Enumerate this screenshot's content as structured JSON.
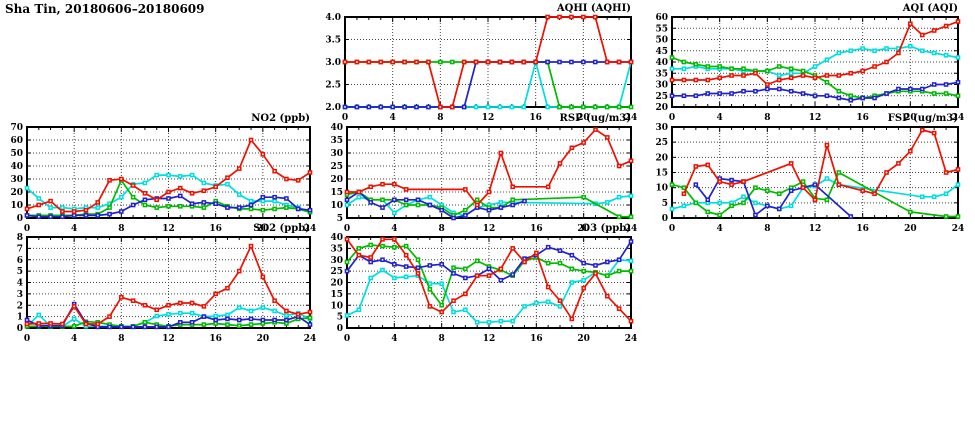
{
  "page_title": "Sha Tin, 20180606–20180609",
  "palette": {
    "red": "#ee1100",
    "green": "#00bb00",
    "blue": "#2222cc",
    "cyan": "#00dfdf"
  },
  "chart_data": [
    {
      "id": "aqhi",
      "type": "line",
      "title": "AQHI (AQHI)",
      "x_ticks": [
        0,
        4,
        8,
        12,
        16,
        20,
        24
      ],
      "x_range": [
        0,
        24
      ],
      "y_range": [
        2.0,
        4.0
      ],
      "y_tick_labels": [
        "2.0",
        "2.5",
        "3.0",
        "3.5",
        "4.0"
      ],
      "y_ticks": [
        2.0,
        2.5,
        3.0,
        3.5,
        4.0
      ],
      "grid": true,
      "legend": "none",
      "series": [
        {
          "name": "series-cyan",
          "color": "cyan",
          "values": [
            2,
            2,
            2,
            2,
            2,
            2,
            2,
            2,
            2,
            2,
            2,
            2,
            2,
            2,
            2,
            2,
            3,
            2,
            2,
            2,
            2,
            2,
            2,
            2,
            3
          ]
        },
        {
          "name": "series-green",
          "color": "green",
          "values": [
            3,
            3,
            3,
            3,
            3,
            3,
            3,
            3,
            3,
            3,
            3,
            3,
            3,
            3,
            3,
            3,
            3,
            3,
            2,
            2,
            2,
            2,
            2,
            2,
            2
          ]
        },
        {
          "name": "series-blue",
          "color": "blue",
          "values": [
            2,
            2,
            2,
            2,
            2,
            2,
            2,
            2,
            2,
            2,
            2,
            3,
            3,
            3,
            3,
            3,
            3,
            3,
            3,
            3,
            3,
            3,
            3,
            3,
            3
          ]
        },
        {
          "name": "series-red",
          "color": "red",
          "values": [
            3,
            3,
            3,
            3,
            3,
            3,
            3,
            3,
            2,
            2,
            3,
            3,
            3,
            3,
            3,
            3,
            3,
            4,
            4,
            4,
            4,
            4,
            3,
            3,
            3
          ]
        }
      ]
    },
    {
      "id": "aqi",
      "type": "line",
      "title": "AQI (AQI)",
      "x_ticks": [
        0,
        4,
        8,
        12,
        16,
        20,
        24
      ],
      "x_range": [
        0,
        24
      ],
      "y_range": [
        20,
        60
      ],
      "y_tick_labels": [
        "20",
        "25",
        "30",
        "35",
        "40",
        "45",
        "50",
        "55",
        "60"
      ],
      "y_ticks": [
        20,
        25,
        30,
        35,
        40,
        45,
        50,
        55,
        60
      ],
      "grid": true,
      "legend": "none",
      "series": [
        {
          "name": "series-cyan",
          "color": "cyan",
          "values": [
            37,
            37,
            38,
            37,
            37,
            37,
            36,
            36,
            36,
            34,
            35,
            35,
            38,
            41,
            44,
            45,
            46,
            45,
            46,
            46,
            47,
            45,
            44,
            43,
            42
          ]
        },
        {
          "name": "series-green",
          "color": "green",
          "values": [
            42,
            40,
            39,
            38,
            38,
            37,
            37,
            36,
            36,
            38,
            37,
            36,
            34,
            31,
            27,
            25,
            24,
            25,
            26,
            27,
            27,
            27,
            26,
            26,
            25
          ]
        },
        {
          "name": "series-blue",
          "color": "blue",
          "values": [
            25,
            25,
            25,
            26,
            26,
            26,
            27,
            27,
            28,
            28,
            27,
            26,
            25,
            25,
            24,
            23,
            24,
            24,
            26,
            28,
            28,
            28,
            30,
            30,
            31
          ]
        },
        {
          "name": "series-red",
          "color": "red",
          "values": [
            32,
            32,
            32,
            32,
            33,
            34,
            34,
            35,
            30,
            32,
            33,
            34,
            33,
            34,
            34,
            35,
            36,
            38,
            40,
            44,
            57,
            52,
            54,
            56,
            58
          ]
        }
      ]
    },
    {
      "id": "no2",
      "type": "line",
      "title": "NO2 (ppb)",
      "x_ticks": [
        0,
        4,
        8,
        12,
        16,
        20,
        24
      ],
      "x_range": [
        0,
        24
      ],
      "y_range": [
        0,
        70
      ],
      "y_tick_labels": [
        "0",
        "10",
        "20",
        "30",
        "40",
        "50",
        "60",
        "70"
      ],
      "y_ticks": [
        0,
        10,
        20,
        30,
        40,
        50,
        60,
        70
      ],
      "grid": true,
      "legend": "none",
      "series": [
        {
          "name": "series-cyan",
          "color": "cyan",
          "values": [
            23,
            15,
            8,
            8,
            7,
            8,
            8,
            11,
            16,
            26,
            27,
            33,
            33,
            32,
            33,
            27,
            25,
            26,
            18,
            13,
            13,
            13,
            10,
            8,
            5
          ]
        },
        {
          "name": "series-green",
          "color": "green",
          "values": [
            2,
            2,
            2,
            2,
            2,
            3,
            3,
            8,
            29,
            16,
            10,
            8,
            9,
            9,
            9,
            8,
            13,
            9,
            7,
            7,
            6,
            7,
            8,
            7,
            4.5
          ]
        },
        {
          "name": "series-blue",
          "color": "blue",
          "values": [
            2,
            1,
            1,
            1,
            2,
            2,
            2,
            3,
            5,
            10,
            14,
            15,
            15,
            17,
            11,
            12,
            11,
            8,
            8,
            10,
            16,
            16,
            15,
            7,
            6
          ]
        },
        {
          "name": "series-red",
          "color": "red",
          "values": [
            7,
            10,
            13,
            5,
            5,
            6,
            12,
            29,
            30,
            25,
            19,
            14,
            20,
            23,
            19,
            21,
            24,
            31,
            38,
            60,
            49,
            36,
            30,
            29,
            35
          ]
        }
      ]
    },
    {
      "id": "rsp",
      "type": "line",
      "title": "RSP (ug/m3)",
      "x_ticks": [
        0,
        4,
        8,
        12,
        16,
        20,
        24
      ],
      "x_range": [
        0,
        24
      ],
      "y_range": [
        5,
        40
      ],
      "y_tick_labels": [
        "5",
        "10",
        "15",
        "20",
        "25",
        "30",
        "35",
        "40"
      ],
      "y_ticks": [
        5,
        10,
        15,
        20,
        25,
        30,
        35,
        40
      ],
      "grid": true,
      "legend": "none",
      "series": [
        {
          "name": "series-cyan",
          "color": "cyan",
          "values": [
            10,
            13,
            12,
            12,
            7,
            10,
            12,
            13,
            10,
            7,
            6,
            9,
            10,
            11,
            11,
            null,
            null,
            null,
            null,
            null,
            null,
            10.5,
            11,
            13,
            13.5
          ]
        },
        {
          "name": "series-green",
          "color": "green",
          "values": [
            14,
            15,
            12,
            12,
            12,
            10,
            10,
            10,
            9,
            6,
            8,
            12,
            9,
            9,
            12,
            null,
            null,
            null,
            null,
            null,
            13,
            null,
            null,
            5.5,
            5.5
          ]
        },
        {
          "name": "series-blue",
          "color": "blue",
          "values": [
            12,
            15,
            11,
            9,
            12,
            12,
            12,
            10,
            8,
            5,
            6,
            9,
            8,
            9,
            10,
            11.5,
            null,
            null,
            null,
            null,
            null,
            null,
            null,
            null,
            null
          ]
        },
        {
          "name": "series-red",
          "color": "red",
          "values": [
            15,
            15,
            17,
            18,
            18,
            16,
            null,
            null,
            null,
            null,
            16,
            10,
            15,
            30,
            17,
            null,
            null,
            17,
            26,
            32,
            34,
            39,
            36,
            25,
            27
          ]
        }
      ]
    },
    {
      "id": "fsp",
      "type": "line",
      "title": "FSP (ug/m3)",
      "x_ticks": [
        0,
        4,
        8,
        12,
        16,
        20,
        24
      ],
      "x_range": [
        0,
        24
      ],
      "y_range": [
        0,
        30
      ],
      "y_tick_labels": [
        "0",
        "5",
        "10",
        "15",
        "20",
        "25",
        "30"
      ],
      "y_ticks": [
        0,
        5,
        10,
        15,
        20,
        25,
        30
      ],
      "grid": true,
      "legend": "none",
      "series": [
        {
          "name": "series-cyan",
          "color": "cyan",
          "values": [
            3,
            4,
            5,
            5,
            5,
            5,
            7,
            5,
            4,
            3,
            4,
            10,
            10.5,
            13,
            11,
            null,
            null,
            null,
            null,
            null,
            null,
            7,
            7,
            8,
            11
          ]
        },
        {
          "name": "series-green",
          "color": "green",
          "values": [
            11,
            10,
            5,
            2,
            1,
            4,
            5,
            10,
            9,
            8,
            10,
            12,
            6.5,
            6,
            15,
            null,
            null,
            null,
            null,
            null,
            2,
            null,
            null,
            0.5,
            0.5
          ]
        },
        {
          "name": "series-blue",
          "color": "blue",
          "values": [
            null,
            null,
            11,
            6,
            13,
            12.5,
            12,
            1,
            4,
            3,
            9,
            10,
            11,
            null,
            null,
            0.5,
            null,
            null,
            null,
            null,
            null,
            null,
            null,
            null,
            null
          ]
        },
        {
          "name": "series-red",
          "color": "red",
          "values": [
            null,
            8,
            17,
            17.5,
            12,
            11,
            12,
            null,
            null,
            null,
            18,
            10,
            6,
            24,
            11,
            null,
            9,
            8,
            15,
            18,
            22,
            29,
            28,
            15,
            16
          ]
        }
      ]
    },
    {
      "id": "so2",
      "type": "line",
      "title": "SO2 (ppb)",
      "x_ticks": [
        0,
        4,
        8,
        12,
        16,
        20,
        24
      ],
      "x_range": [
        0,
        24
      ],
      "y_range": [
        0,
        8
      ],
      "y_tick_labels": [
        "0",
        "1",
        "2",
        "3",
        "4",
        "5",
        "6",
        "7",
        "8"
      ],
      "y_ticks": [
        0,
        1,
        2,
        3,
        4,
        5,
        6,
        7,
        8
      ],
      "grid": true,
      "legend": "none",
      "series": [
        {
          "name": "series-cyan",
          "color": "cyan",
          "values": [
            0.15,
            1.15,
            0.15,
            0.15,
            0.8,
            0.15,
            0.15,
            0.15,
            0.15,
            0.15,
            0.5,
            1.05,
            1.2,
            1.3,
            1.3,
            1.0,
            1.05,
            1.15,
            1.8,
            1.5,
            1.8,
            1.5,
            1.1,
            1.3,
            0.8
          ]
        },
        {
          "name": "series-green",
          "color": "green",
          "values": [
            0.15,
            0.15,
            0.15,
            0.15,
            0.15,
            0.55,
            0.5,
            0.3,
            0.15,
            0.15,
            0.5,
            0.3,
            0.15,
            0.3,
            0.3,
            0.3,
            0.4,
            0.3,
            0.2,
            0.3,
            0.4,
            0.5,
            0.4,
            0.8,
            0.9
          ]
        },
        {
          "name": "series-blue",
          "color": "blue",
          "values": [
            0.7,
            0.2,
            0.2,
            0.2,
            2.1,
            0.45,
            0.1,
            0.1,
            0.1,
            0.1,
            0.1,
            0.1,
            0.1,
            0.5,
            0.5,
            1.0,
            0.7,
            0.8,
            0.7,
            0.8,
            0.7,
            0.7,
            0.7,
            1.0,
            0.3
          ]
        },
        {
          "name": "series-red",
          "color": "red",
          "values": [
            0.35,
            0.4,
            0.4,
            0.35,
            1.9,
            0.35,
            0.35,
            1.0,
            2.7,
            2.4,
            2.0,
            1.6,
            2.0,
            2.2,
            2.2,
            1.9,
            3.0,
            3.5,
            5.0,
            7.2,
            4.5,
            2.4,
            1.5,
            1.2,
            1.4
          ]
        }
      ]
    },
    {
      "id": "o3",
      "type": "line",
      "title": "O3 (ppb)",
      "x_ticks": [
        0,
        4,
        8,
        12,
        16,
        20,
        24
      ],
      "x_range": [
        0,
        24
      ],
      "y_range": [
        0,
        40
      ],
      "y_tick_labels": [
        "0",
        "5",
        "10",
        "15",
        "20",
        "25",
        "30",
        "35",
        "40"
      ],
      "y_ticks": [
        0,
        5,
        10,
        15,
        20,
        25,
        30,
        35,
        40
      ],
      "grid": true,
      "legend": "none",
      "series": [
        {
          "name": "series-cyan",
          "color": "cyan",
          "values": [
            5.5,
            8,
            22,
            25.5,
            22,
            22.5,
            23,
            19.5,
            19.5,
            7,
            8,
            2.5,
            2.5,
            3,
            3,
            9.5,
            11,
            11.5,
            9.5,
            20,
            21,
            24.5,
            23,
            30,
            29.5
          ]
        },
        {
          "name": "series-green",
          "color": "green",
          "values": [
            29,
            35,
            36.5,
            36,
            35.5,
            36,
            30,
            17,
            10,
            26.5,
            26,
            29.5,
            27,
            25.5,
            23,
            29.5,
            31,
            28.5,
            28.5,
            26,
            25,
            24.5,
            23,
            25,
            25
          ]
        },
        {
          "name": "series-blue",
          "color": "blue",
          "values": [
            25,
            32,
            29,
            30,
            28,
            27,
            26.5,
            27.5,
            28,
            24,
            22,
            23,
            26,
            21,
            23.5,
            30.5,
            32,
            35.5,
            34,
            32,
            28.5,
            27.5,
            29,
            30,
            38
          ]
        },
        {
          "name": "series-red",
          "color": "red",
          "values": [
            39,
            32,
            31,
            39,
            39,
            32,
            24,
            9.5,
            7,
            12,
            15,
            23,
            23,
            26,
            35,
            29,
            33,
            18,
            12,
            4,
            17.5,
            24,
            14,
            8.5,
            3
          ]
        }
      ]
    }
  ]
}
